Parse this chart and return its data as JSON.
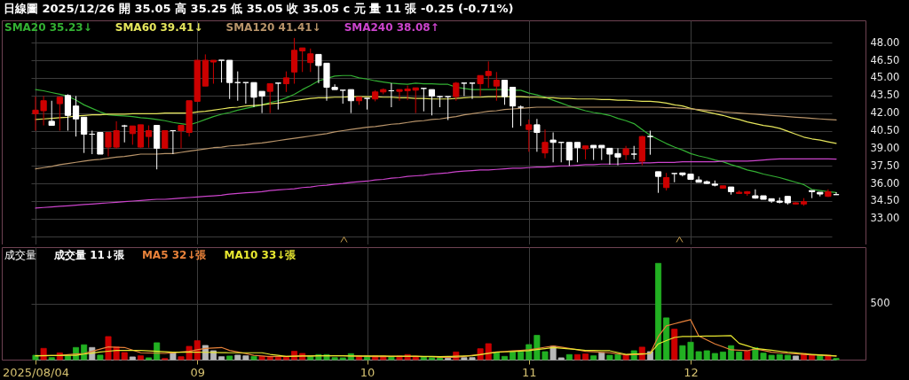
{
  "chart_data": [
    {
      "type": "candlestick",
      "title": "日線圖 2025/12/26 開 35.05 高 35.25 低 35.05 收 35.05 c 元 量 11 張 -0.25 (-0.71%)",
      "categories": [
        "2025/08/04",
        null,
        null,
        null,
        null,
        null,
        null,
        null,
        null,
        null,
        null,
        null,
        null,
        null,
        null,
        null,
        null,
        null,
        null,
        null,
        "09",
        null,
        null,
        null,
        null,
        null,
        null,
        null,
        null,
        null,
        null,
        null,
        null,
        null,
        null,
        null,
        null,
        null,
        null,
        null,
        null,
        "10",
        null,
        null,
        null,
        null,
        null,
        null,
        null,
        null,
        null,
        null,
        null,
        null,
        null,
        null,
        null,
        null,
        null,
        null,
        null,
        "11",
        null,
        null,
        null,
        null,
        null,
        null,
        null,
        null,
        null,
        null,
        null,
        null,
        null,
        null,
        null,
        null,
        null,
        null,
        null,
        "12",
        null,
        null,
        null,
        null,
        null,
        null,
        null,
        null,
        null,
        null,
        null,
        null,
        null,
        null,
        null,
        null,
        null,
        null
      ],
      "ohlc": [
        [
          41.95,
          43.4,
          40.5,
          42.25
        ],
        [
          42.2,
          43.45,
          40.95,
          43.05
        ],
        [
          41.3,
          43.05,
          40.95,
          40.95
        ],
        [
          42.8,
          43.35,
          40.5,
          43.35
        ],
        [
          43.5,
          43.6,
          40.5,
          41.8
        ],
        [
          42.6,
          43.45,
          40,
          41.5
        ],
        [
          41.65,
          41.65,
          38.6,
          40.2
        ],
        [
          40.2,
          40.5,
          38.5,
          40.2
        ],
        [
          40.35,
          40.35,
          38.5,
          38.5
        ],
        [
          39.1,
          40.35,
          38.3,
          40.35
        ],
        [
          39.1,
          41.3,
          38.95,
          40.5
        ],
        [
          40.9,
          41,
          39.5,
          40.9
        ],
        [
          40.25,
          40.9,
          39.3,
          40.9
        ],
        [
          39.1,
          41,
          39.05,
          41
        ],
        [
          40,
          40.95,
          39.05,
          40.5
        ],
        [
          40.95,
          40.95,
          37.2,
          39
        ],
        [
          39,
          40.5,
          38.95,
          40.5
        ],
        [
          40.5,
          40.5,
          38.5,
          40.5
        ],
        [
          40.5,
          40.95,
          39,
          40.95
        ],
        [
          40.35,
          43.05,
          40,
          43.05
        ],
        [
          43,
          46.5,
          42.95,
          46.5
        ],
        [
          44.3,
          47,
          44.3,
          46.5
        ],
        [
          46.35,
          46.5,
          44.5,
          46.5
        ],
        [
          46.5,
          46.5,
          44.6,
          46.5
        ],
        [
          46.5,
          46.5,
          43.2,
          44.6
        ],
        [
          44.6,
          45.55,
          43.05,
          44.6
        ],
        [
          44.6,
          44.6,
          42.8,
          44.6
        ],
        [
          44.6,
          44.6,
          42.5,
          43.35
        ],
        [
          43.85,
          43.85,
          42,
          43.45
        ],
        [
          43.85,
          44.5,
          42,
          44.5
        ],
        [
          44.55,
          44.55,
          42.3,
          44.55
        ],
        [
          44.5,
          45.55,
          43.8,
          45
        ],
        [
          45.5,
          48.4,
          44.5,
          47.35
        ],
        [
          47.3,
          47.55,
          45.5,
          47.55
        ],
        [
          46.3,
          47.5,
          45.5,
          47.05
        ],
        [
          47,
          47,
          44.55,
          46.05
        ],
        [
          46.25,
          46.25,
          43.05,
          44.2
        ],
        [
          44.2,
          44.45,
          44,
          44
        ],
        [
          43.95,
          43.95,
          42.8,
          43.95
        ],
        [
          44,
          44,
          42,
          43.05
        ],
        [
          43.05,
          43.35,
          42.7,
          43.35
        ],
        [
          43.25,
          43.25,
          42.3,
          43.25
        ],
        [
          43.2,
          43.95,
          43,
          43.8
        ],
        [
          43.8,
          44.1,
          43.6,
          44
        ],
        [
          43.9,
          44.55,
          42.5,
          43.9
        ],
        [
          43.85,
          44,
          43.05,
          44
        ],
        [
          43.9,
          44.35,
          43.1,
          44.05
        ],
        [
          43.95,
          44.15,
          42,
          44.15
        ],
        [
          44.1,
          44.15,
          42.15,
          44.1
        ],
        [
          44,
          44,
          41.8,
          43.45
        ],
        [
          43.4,
          43.45,
          42.5,
          43.4
        ],
        [
          43.4,
          43.4,
          41.4,
          43.4
        ],
        [
          43.4,
          44.65,
          43.05,
          44.55
        ],
        [
          44.55,
          44.55,
          43.45,
          44.55
        ],
        [
          44.55,
          44.55,
          43.2,
          44.55
        ],
        [
          44.5,
          45.2,
          43.45,
          45.2
        ],
        [
          45.2,
          46.4,
          44.15,
          45.55
        ],
        [
          44.3,
          45.5,
          43.05,
          44.8
        ],
        [
          44.8,
          44.8,
          42.7,
          43.4
        ],
        [
          44.2,
          44.2,
          40.75,
          42.6
        ],
        [
          42.5,
          42.65,
          40.9,
          42.5
        ],
        [
          40.6,
          41.45,
          38.7,
          41
        ],
        [
          41,
          41.5,
          38.7,
          40.35
        ],
        [
          38.6,
          40.6,
          38.15,
          39.5
        ],
        [
          39.7,
          40.35,
          37.8,
          39.5
        ],
        [
          39.5,
          39.5,
          37.8,
          39.5
        ],
        [
          39.5,
          39.5,
          37.5,
          38
        ],
        [
          39.5,
          39.5,
          37.8,
          39.05
        ],
        [
          38.95,
          39.2,
          38.05,
          39.2
        ],
        [
          39.25,
          39.25,
          38,
          39.05
        ],
        [
          39.25,
          39.25,
          38,
          39.05
        ],
        [
          39,
          39,
          37.6,
          38.5
        ],
        [
          38.55,
          39,
          37.55,
          38.25
        ],
        [
          38.45,
          39.2,
          38,
          38.95
        ],
        [
          38.5,
          39.2,
          38.05,
          38.5
        ],
        [
          37.9,
          40.05,
          37.55,
          40
        ],
        [
          40,
          40.5,
          38.45,
          40
        ],
        [
          37,
          37,
          35.2,
          36.6
        ],
        [
          35.65,
          36.9,
          35.4,
          36.5
        ],
        [
          36.85,
          36.85,
          36.1,
          36.85
        ],
        [
          36.9,
          36.9,
          36.6,
          36.75
        ],
        [
          36.8,
          36.8,
          36.35,
          36.35
        ],
        [
          36.3,
          36.6,
          36.1,
          36.1
        ],
        [
          36.15,
          36.25,
          35.95,
          36
        ],
        [
          35.95,
          36.25,
          35.75,
          35.85
        ],
        [
          35.6,
          35.8,
          35.6,
          35.8
        ],
        [
          35.7,
          35.7,
          35.05,
          35.3
        ],
        [
          35.15,
          35.4,
          35.1,
          35.25
        ],
        [
          35.15,
          35.35,
          34.95,
          35.3
        ],
        [
          34.95,
          35.5,
          34.7,
          34.75
        ],
        [
          34.95,
          34.95,
          34.65,
          34.65
        ],
        [
          34.7,
          34.7,
          34.35,
          34.5
        ],
        [
          34.5,
          34.8,
          34.3,
          34.4
        ],
        [
          34.9,
          34.9,
          34.2,
          34.35
        ],
        [
          34.25,
          34.4,
          34.25,
          34.35
        ],
        [
          34.25,
          34.75,
          34.1,
          34.45
        ],
        [
          35.4,
          35.4,
          34.75,
          35.3
        ],
        [
          35.25,
          35.25,
          34.9,
          35.1
        ],
        [
          34.9,
          35.5,
          34.85,
          35.3
        ],
        [
          35.05,
          35.25,
          35.05,
          35.05
        ]
      ],
      "colors": [
        "#cc0000",
        "#cc0000",
        "#ffffff",
        "#cc0000",
        "#ffffff",
        "#ffffff",
        "#ffffff",
        "#ffffff",
        "#ffffff",
        "#cc0000",
        "#cc0000",
        "#ffffff",
        "#cc0000",
        "#cc0000",
        "#cc0000",
        "#ffffff",
        "#cc0000",
        "#ffffff",
        "#cc0000",
        "#cc0000",
        "#cc0000",
        "#cc0000",
        "#cc0000",
        "#ffffff",
        "#ffffff",
        "#ffffff",
        "#ffffff",
        "#ffffff",
        "#ffffff",
        "#cc0000",
        "#ffffff",
        "#cc0000",
        "#cc0000",
        "#cc0000",
        "#cc0000",
        "#ffffff",
        "#ffffff",
        "#ffffff",
        "#ffffff",
        "#ffffff",
        "#cc0000",
        "#ffffff",
        "#cc0000",
        "#cc0000",
        "#ffffff",
        "#cc0000",
        "#cc0000",
        "#cc0000",
        "#ffffff",
        "#ffffff",
        "#ffffff",
        "#ffffff",
        "#cc0000",
        "#ffffff",
        "#ffffff",
        "#cc0000",
        "#cc0000",
        "#cc0000",
        "#ffffff",
        "#ffffff",
        "#ffffff",
        "#cc0000",
        "#ffffff",
        "#cc0000",
        "#ffffff",
        "#ffffff",
        "#ffffff",
        "#ffffff",
        "#cc0000",
        "#ffffff",
        "#ffffff",
        "#ffffff",
        "#ffffff",
        "#cc0000",
        "#ffffff",
        "#cc0000",
        "#ffffff",
        "#ffffff",
        "#cc0000",
        "#ffffff",
        "#ffffff",
        "#ffffff",
        "#ffffff",
        "#ffffff",
        "#ffffff",
        "#cc0000",
        "#ffffff",
        "#cc0000",
        "#cc0000",
        "#ffffff",
        "#ffffff",
        "#ffffff",
        "#ffffff",
        "#ffffff",
        "#cc0000",
        "#cc0000",
        "#ffffff",
        "#ffffff",
        "#cc0000",
        "#ffffff"
      ],
      "series": [
        {
          "type": "line",
          "name": "SMA20 35.23↓",
          "color": "#33b033",
          "values": [
            44.0,
            43.9,
            43.75,
            43.6,
            43.45,
            43.1,
            42.7,
            42.4,
            42.1,
            41.85,
            41.8,
            41.75,
            41.7,
            41.6,
            41.55,
            41.45,
            41.35,
            41.2,
            41.1,
            41.0,
            41.2,
            41.45,
            41.7,
            41.9,
            42.05,
            42.25,
            42.4,
            42.55,
            42.7,
            42.9,
            43.05,
            43.3,
            43.6,
            44.0,
            44.35,
            44.75,
            44.95,
            45.15,
            45.2,
            45.2,
            45.0,
            44.9,
            44.75,
            44.65,
            44.55,
            44.5,
            44.45,
            44.55,
            44.5,
            44.5,
            44.45,
            44.45,
            44.2,
            44.1,
            44.0,
            44.0,
            44.0,
            44.0,
            44.0,
            43.95,
            43.95,
            43.7,
            43.55,
            43.35,
            43.1,
            42.85,
            42.6,
            42.4,
            42.2,
            42.05,
            41.95,
            41.8,
            41.55,
            41.35,
            41.1,
            40.6,
            40.1,
            39.75,
            39.4,
            39.1,
            38.85,
            38.55,
            38.35,
            38.2,
            38.0,
            37.85,
            37.6,
            37.4,
            37.15,
            37.0,
            36.8,
            36.65,
            36.5,
            36.3,
            36.1,
            35.9,
            35.5,
            35.4,
            35.3,
            35.23
          ]
        },
        {
          "type": "line",
          "name": "SMA60 39.41↓",
          "color": "#e6e65c",
          "values": [
            41.45,
            41.5,
            41.55,
            41.6,
            41.65,
            41.75,
            41.8,
            41.85,
            41.85,
            41.9,
            41.9,
            41.9,
            41.95,
            41.95,
            41.95,
            41.95,
            42.0,
            42.0,
            42.0,
            42.0,
            42.1,
            42.15,
            42.25,
            42.35,
            42.45,
            42.5,
            42.6,
            42.65,
            42.7,
            42.8,
            42.85,
            42.95,
            43.05,
            43.15,
            43.25,
            43.3,
            43.3,
            43.35,
            43.35,
            43.4,
            43.4,
            43.4,
            43.4,
            43.35,
            43.35,
            43.3,
            43.3,
            43.25,
            43.25,
            43.2,
            43.2,
            43.2,
            43.25,
            43.3,
            43.35,
            43.35,
            43.4,
            43.4,
            43.4,
            43.4,
            43.4,
            43.35,
            43.35,
            43.3,
            43.3,
            43.25,
            43.25,
            43.2,
            43.2,
            43.2,
            43.15,
            43.15,
            43.1,
            43.1,
            43.05,
            43.0,
            43.0,
            42.95,
            42.85,
            42.7,
            42.6,
            42.4,
            42.25,
            42.1,
            41.95,
            41.8,
            41.6,
            41.45,
            41.25,
            41.1,
            40.95,
            40.85,
            40.7,
            40.45,
            40.2,
            39.95,
            39.8,
            39.7,
            39.55,
            39.41
          ]
        },
        {
          "type": "line",
          "name": "SMA120 41.41↓",
          "color": "#b8946a",
          "values": [
            37.25,
            37.35,
            37.45,
            37.6,
            37.7,
            37.8,
            37.9,
            38.0,
            38.05,
            38.15,
            38.25,
            38.3,
            38.4,
            38.5,
            38.5,
            38.5,
            38.55,
            38.55,
            38.65,
            38.75,
            38.85,
            38.95,
            39.05,
            39.1,
            39.2,
            39.25,
            39.3,
            39.4,
            39.45,
            39.55,
            39.65,
            39.75,
            39.85,
            39.95,
            40.05,
            40.15,
            40.25,
            40.4,
            40.5,
            40.6,
            40.7,
            40.8,
            40.85,
            40.95,
            41.05,
            41.1,
            41.2,
            41.3,
            41.35,
            41.45,
            41.5,
            41.6,
            41.7,
            41.85,
            41.95,
            42.05,
            42.15,
            42.2,
            42.3,
            42.35,
            42.4,
            42.45,
            42.5,
            42.5,
            42.5,
            42.5,
            42.5,
            42.5,
            42.5,
            42.5,
            42.5,
            42.5,
            42.5,
            42.5,
            42.5,
            42.5,
            42.5,
            42.5,
            42.45,
            42.45,
            42.4,
            42.35,
            42.3,
            42.25,
            42.2,
            42.1,
            42.05,
            42.0,
            41.95,
            41.9,
            41.85,
            41.8,
            41.75,
            41.7,
            41.65,
            41.6,
            41.55,
            41.5,
            41.45,
            41.41
          ]
        },
        {
          "type": "line",
          "name": "SMA240 38.08↑",
          "color": "#cc44cc",
          "values": [
            33.9,
            33.95,
            34.0,
            34.05,
            34.1,
            34.15,
            34.2,
            34.25,
            34.3,
            34.35,
            34.4,
            34.45,
            34.5,
            34.55,
            34.6,
            34.65,
            34.65,
            34.7,
            34.75,
            34.8,
            34.85,
            34.9,
            34.95,
            35.0,
            35.1,
            35.15,
            35.2,
            35.25,
            35.3,
            35.4,
            35.45,
            35.5,
            35.55,
            35.65,
            35.7,
            35.8,
            35.85,
            35.95,
            36.0,
            36.1,
            36.15,
            36.2,
            36.3,
            36.35,
            36.45,
            36.5,
            36.6,
            36.65,
            36.7,
            36.8,
            36.85,
            36.9,
            37.0,
            37.05,
            37.1,
            37.15,
            37.15,
            37.2,
            37.25,
            37.3,
            37.3,
            37.35,
            37.4,
            37.4,
            37.45,
            37.5,
            37.5,
            37.55,
            37.6,
            37.6,
            37.65,
            37.65,
            37.65,
            37.7,
            37.7,
            37.75,
            37.75,
            37.8,
            37.8,
            37.8,
            37.85,
            37.85,
            37.85,
            37.85,
            37.85,
            37.9,
            37.9,
            37.9,
            37.9,
            37.95,
            38.0,
            38.05,
            38.1,
            38.1,
            38.1,
            38.1,
            38.1,
            38.1,
            38.1,
            38.08
          ]
        }
      ],
      "ylim": [
        30.8,
        49.9
      ],
      "yticks": [
        {
          "value": 31.5,
          "label": null
        },
        {
          "value": 33,
          "label": "33.00"
        },
        {
          "value": 34.5,
          "label": "34.50"
        },
        {
          "value": 36,
          "label": "36.00"
        },
        {
          "value": 37.5,
          "label": "37.50"
        },
        {
          "value": 39,
          "label": "39.00"
        },
        {
          "value": 40.5,
          "label": "40.50"
        },
        {
          "value": 42,
          "label": "42.00"
        },
        {
          "value": 43.5,
          "label": "43.50"
        },
        {
          "value": 45,
          "label": "45.00"
        },
        {
          "value": 46.5,
          "label": "46.50"
        },
        {
          "value": 48,
          "label": "48.00"
        }
      ],
      "grid": true,
      "tick_labels": "y"
    },
    {
      "type": "bar",
      "title": "成交量",
      "annotations": [
        "成交量 11↓張"
      ],
      "categories": [
        "2025/08/04",
        null,
        null,
        null,
        null,
        null,
        null,
        null,
        null,
        null,
        null,
        null,
        null,
        null,
        null,
        null,
        null,
        null,
        null,
        null,
        "09",
        null,
        null,
        null,
        null,
        null,
        null,
        null,
        null,
        null,
        null,
        null,
        null,
        null,
        null,
        null,
        null,
        null,
        null,
        null,
        null,
        "10",
        null,
        null,
        null,
        null,
        null,
        null,
        null,
        null,
        null,
        null,
        null,
        null,
        null,
        null,
        null,
        null,
        null,
        null,
        null,
        "11",
        null,
        null,
        null,
        null,
        null,
        null,
        null,
        null,
        null,
        null,
        null,
        null,
        null,
        null,
        null,
        null,
        null,
        null,
        null,
        "12",
        null,
        null,
        null,
        null,
        null,
        null,
        null,
        null,
        null,
        null,
        null,
        null,
        null,
        null,
        null,
        null,
        null,
        null
      ],
      "series": [
        {
          "type": "bar",
          "values": [
            39,
            100,
            18,
            60,
            34,
            108,
            132,
            108,
            40,
            205,
            113,
            63,
            24,
            34,
            16,
            150,
            10,
            63,
            26,
            118,
            168,
            126,
            79,
            26,
            32,
            40,
            34,
            29,
            29,
            29,
            20,
            26,
            74,
            55,
            34,
            45,
            45,
            18,
            16,
            53,
            32,
            32,
            32,
            32,
            26,
            32,
            45,
            29,
            24,
            18,
            18,
            13,
            68,
            18,
            18,
            97,
            142,
            61,
            29,
            66,
            68,
            134,
            216,
            71,
            118,
            16,
            45,
            45,
            50,
            34,
            61,
            39,
            45,
            39,
            79,
            111,
            71,
            856,
            371,
            271,
            124,
            155,
            71,
            79,
            55,
            68,
            124,
            68,
            76,
            105,
            58,
            39,
            45,
            39,
            32,
            55,
            39,
            39,
            39,
            11
          ],
          "colors": [
            "#22b022",
            "#cc0000",
            "#22b022",
            "#cc0000",
            "#22b022",
            "#22b022",
            "#22b022",
            "#b8b8b8",
            "#22b022",
            "#cc0000",
            "#cc0000",
            "#cc0000",
            "#b8b8b8",
            "#cc0000",
            "#22b022",
            "#22b022",
            "#cc0000",
            "#b8b8b8",
            "#cc0000",
            "#cc0000",
            "#cc0000",
            "#b8b8b8",
            "#b8b8b8",
            "#b8b8b8",
            "#22b022",
            "#b8b8b8",
            "#b8b8b8",
            "#22b022",
            "#cc0000",
            "#cc0000",
            "#cc0000",
            "#cc0000",
            "#cc0000",
            "#cc0000",
            "#22b022",
            "#22b022",
            "#22b022",
            "#22b022",
            "#22b022",
            "#22b022",
            "#cc0000",
            "#22b022",
            "#cc0000",
            "#cc0000",
            "#22b022",
            "#cc0000",
            "#cc0000",
            "#cc0000",
            "#22b022",
            "#22b022",
            "#22b022",
            "#b8b8b8",
            "#cc0000",
            "#b8b8b8",
            "#b8b8b8",
            "#cc0000",
            "#cc0000",
            "#22b022",
            "#22b022",
            "#22b022",
            "#22b022",
            "#22b022",
            "#22b022",
            "#22b022",
            "#b8b8b8",
            "#b8b8b8",
            "#22b022",
            "#cc0000",
            "#cc0000",
            "#22b022",
            "#b8b8b8",
            "#22b022",
            "#22b022",
            "#cc0000",
            "#22b022",
            "#cc0000",
            "#b8b8b8",
            "#22b022",
            "#22b022",
            "#cc0000",
            "#22b022",
            "#22b022",
            "#22b022",
            "#22b022",
            "#22b022",
            "#22b022",
            "#22b022",
            "#22b022",
            "#cc0000",
            "#22b022",
            "#22b022",
            "#22b022",
            "#22b022",
            "#22b022",
            "#b8b8b8",
            "#cc0000",
            "#cc0000",
            "#22b022",
            "#cc0000",
            "#22b022"
          ]
        },
        {
          "type": "line",
          "name": "MA5 32↓張",
          "color": "#e8823a",
          "values": [
            34,
            36,
            37,
            39,
            44,
            50,
            55,
            74,
            94,
            113,
            110,
            108,
            85,
            61,
            59,
            57,
            55,
            61,
            68,
            74,
            87,
            100,
            104,
            108,
            82,
            68,
            53,
            39,
            33,
            26,
            28,
            29,
            30,
            32,
            33,
            34,
            34,
            34,
            34,
            32,
            30,
            28,
            26,
            27,
            28,
            29,
            28,
            28,
            27,
            26,
            21,
            21,
            20,
            29,
            38,
            47,
            58,
            68,
            73,
            77,
            82,
            87,
            98,
            110,
            121,
            111,
            100,
            87,
            74,
            70,
            65,
            61,
            52,
            42,
            45,
            47,
            55,
            205,
            300,
            319,
            337,
            355,
            210,
            175,
            140,
            114,
            87,
            83,
            79,
            95,
            81,
            66,
            61,
            55,
            51,
            46,
            42,
            39,
            35,
            32
          ]
        },
        {
          "type": "line",
          "name": "MA10 33↓張",
          "color": "#e8e830",
          "values": [
            34,
            35,
            36,
            37,
            38,
            39,
            49,
            58,
            68,
            75,
            82,
            82,
            82,
            82,
            78,
            74,
            70,
            66,
            66,
            66,
            66,
            65,
            64,
            62,
            61,
            61,
            61,
            61,
            61,
            47,
            38,
            29,
            30,
            32,
            33,
            34,
            34,
            34,
            34,
            33,
            33,
            32,
            32,
            32,
            31,
            31,
            30,
            30,
            29,
            29,
            26,
            28,
            30,
            32,
            34,
            45,
            55,
            66,
            69,
            72,
            76,
            79,
            89,
            98,
            108,
            102,
            95,
            89,
            82,
            81,
            80,
            79,
            63,
            47,
            50,
            52,
            55,
            140,
            169,
            197,
            205,
            206,
            207,
            209,
            210,
            211,
            213,
            145,
            123,
            100,
            92,
            83,
            75,
            66,
            60,
            53,
            47,
            42,
            38,
            33
          ]
        }
      ],
      "ylim": [
        0,
        1000
      ],
      "yticks": [
        {
          "value": 0,
          "label": null
        },
        500
      ],
      "grid": true
    }
  ]
}
